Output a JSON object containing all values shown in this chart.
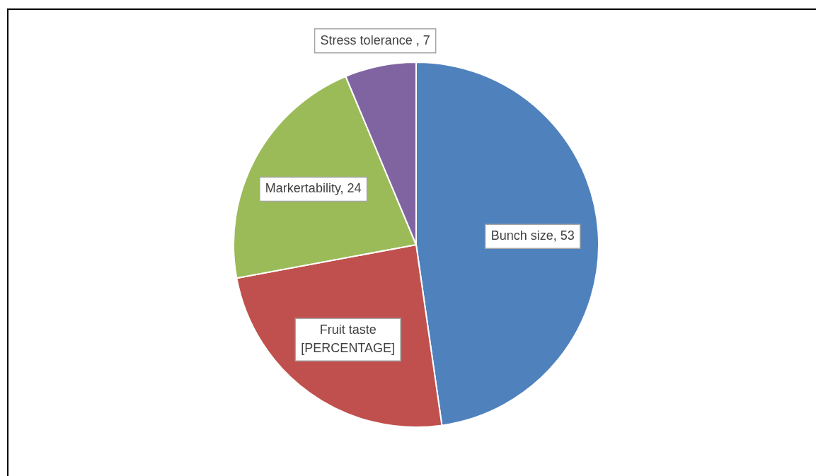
{
  "chart_data": {
    "type": "pie",
    "categories": [
      "Bunch size",
      "Fruit taste",
      "Markertability",
      "Stress tolerance "
    ],
    "values": [
      53,
      27,
      24,
      7
    ],
    "value_labels": [
      "53",
      "[PERCENTAGE]",
      "24",
      "7"
    ],
    "colors": [
      "#4f81bd",
      "#c0504d",
      "#9bbb59",
      "#8064a2"
    ],
    "legend": false
  }
}
